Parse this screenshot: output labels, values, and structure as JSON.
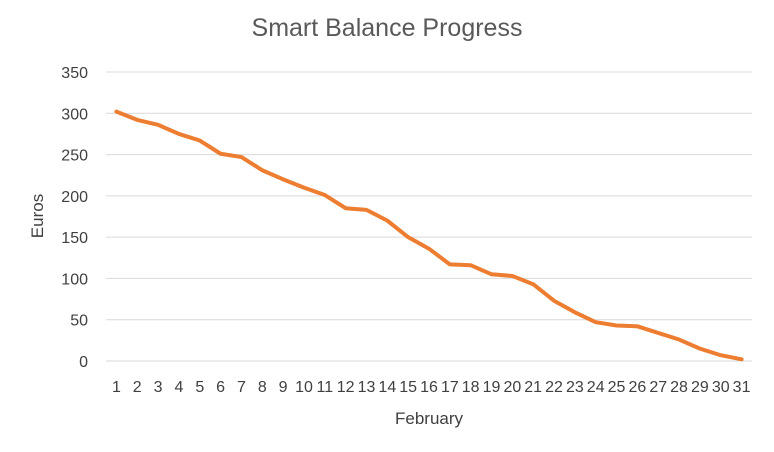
{
  "chart_data": {
    "type": "line",
    "title": "Smart Balance Progress",
    "xlabel": "February",
    "ylabel": "Euros",
    "ylim": [
      0,
      350
    ],
    "yticks": [
      0,
      50,
      100,
      150,
      200,
      250,
      300,
      350
    ],
    "categories": [
      "1",
      "2",
      "3",
      "4",
      "5",
      "6",
      "7",
      "8",
      "9",
      "10",
      "11",
      "12",
      "13",
      "14",
      "15",
      "16",
      "17",
      "18",
      "19",
      "20",
      "21",
      "22",
      "23",
      "24",
      "25",
      "26",
      "27",
      "28",
      "29",
      "30",
      "31"
    ],
    "grid": true,
    "legend": "none",
    "series": [
      {
        "color": "#ed7d31",
        "values": [
          302,
          292,
          286,
          275,
          267,
          251,
          247,
          231,
          220,
          210,
          201,
          185,
          183,
          170,
          150,
          136,
          117,
          116,
          105,
          103,
          93,
          73,
          59,
          47,
          43,
          42,
          34,
          26,
          15,
          7,
          2
        ]
      }
    ]
  }
}
